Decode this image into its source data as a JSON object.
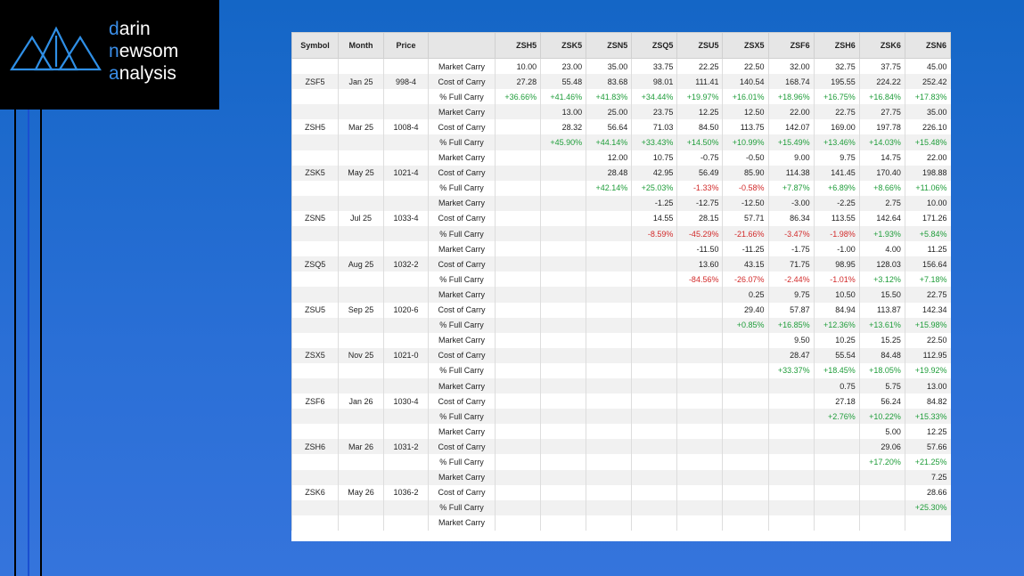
{
  "logo": {
    "lines": [
      "darin",
      "newsom",
      "analysis"
    ]
  },
  "table": {
    "columns": [
      "Symbol",
      "Month",
      "Price"
    ],
    "contracts": [
      "ZSH5",
      "ZSK5",
      "ZSN5",
      "ZSQ5",
      "ZSU5",
      "ZSX5",
      "ZSF6",
      "ZSH6",
      "ZSK6",
      "ZSN6"
    ],
    "groups": [
      {
        "symbol": "ZSF5",
        "month": "Jan 25",
        "price": "998-4",
        "rows": [
          {
            "label": "Market Carry",
            "values": [
              "10.00",
              "23.00",
              "35.00",
              "33.75",
              "22.25",
              "22.50",
              "32.00",
              "32.75",
              "37.75",
              "45.00"
            ]
          },
          {
            "label": "Cost of Carry",
            "values": [
              "27.28",
              "55.48",
              "83.68",
              "98.01",
              "111.41",
              "140.54",
              "168.74",
              "195.55",
              "224.22",
              "252.42"
            ]
          },
          {
            "label": "% Full Carry",
            "values": [
              "+36.66%",
              "+41.46%",
              "+41.83%",
              "+34.44%",
              "+19.97%",
              "+16.01%",
              "+18.96%",
              "+16.75%",
              "+16.84%",
              "+17.83%"
            ]
          }
        ]
      },
      {
        "symbol": "ZSH5",
        "month": "Mar 25",
        "price": "1008-4",
        "rows": [
          {
            "label": "Market Carry",
            "values": [
              null,
              "13.00",
              "25.00",
              "23.75",
              "12.25",
              "12.50",
              "22.00",
              "22.75",
              "27.75",
              "35.00"
            ]
          },
          {
            "label": "Cost of Carry",
            "values": [
              null,
              "28.32",
              "56.64",
              "71.03",
              "84.50",
              "113.75",
              "142.07",
              "169.00",
              "197.78",
              "226.10"
            ]
          },
          {
            "label": "% Full Carry",
            "values": [
              null,
              "+45.90%",
              "+44.14%",
              "+33.43%",
              "+14.50%",
              "+10.99%",
              "+15.49%",
              "+13.46%",
              "+14.03%",
              "+15.48%"
            ]
          }
        ]
      },
      {
        "symbol": "ZSK5",
        "month": "May 25",
        "price": "1021-4",
        "rows": [
          {
            "label": "Market Carry",
            "values": [
              null,
              null,
              "12.00",
              "10.75",
              "-0.75",
              "-0.50",
              "9.00",
              "9.75",
              "14.75",
              "22.00"
            ]
          },
          {
            "label": "Cost of Carry",
            "values": [
              null,
              null,
              "28.48",
              "42.95",
              "56.49",
              "85.90",
              "114.38",
              "141.45",
              "170.40",
              "198.88"
            ]
          },
          {
            "label": "% Full Carry",
            "values": [
              null,
              null,
              "+42.14%",
              "+25.03%",
              "-1.33%",
              "-0.58%",
              "+7.87%",
              "+6.89%",
              "+8.66%",
              "+11.06%"
            ]
          }
        ]
      },
      {
        "symbol": "ZSN5",
        "month": "Jul 25",
        "price": "1033-4",
        "rows": [
          {
            "label": "Market Carry",
            "values": [
              null,
              null,
              null,
              "-1.25",
              "-12.75",
              "-12.50",
              "-3.00",
              "-2.25",
              "2.75",
              "10.00"
            ]
          },
          {
            "label": "Cost of Carry",
            "values": [
              null,
              null,
              null,
              "14.55",
              "28.15",
              "57.71",
              "86.34",
              "113.55",
              "142.64",
              "171.26"
            ]
          },
          {
            "label": "% Full Carry",
            "values": [
              null,
              null,
              null,
              "-8.59%",
              "-45.29%",
              "-21.66%",
              "-3.47%",
              "-1.98%",
              "+1.93%",
              "+5.84%"
            ]
          }
        ]
      },
      {
        "symbol": "ZSQ5",
        "month": "Aug 25",
        "price": "1032-2",
        "rows": [
          {
            "label": "Market Carry",
            "values": [
              null,
              null,
              null,
              null,
              "-11.50",
              "-11.25",
              "-1.75",
              "-1.00",
              "4.00",
              "11.25"
            ]
          },
          {
            "label": "Cost of Carry",
            "values": [
              null,
              null,
              null,
              null,
              "13.60",
              "43.15",
              "71.75",
              "98.95",
              "128.03",
              "156.64"
            ]
          },
          {
            "label": "% Full Carry",
            "values": [
              null,
              null,
              null,
              null,
              "-84.56%",
              "-26.07%",
              "-2.44%",
              "-1.01%",
              "+3.12%",
              "+7.18%"
            ]
          }
        ]
      },
      {
        "symbol": "ZSU5",
        "month": "Sep 25",
        "price": "1020-6",
        "rows": [
          {
            "label": "Market Carry",
            "values": [
              null,
              null,
              null,
              null,
              null,
              "0.25",
              "9.75",
              "10.50",
              "15.50",
              "22.75"
            ]
          },
          {
            "label": "Cost of Carry",
            "values": [
              null,
              null,
              null,
              null,
              null,
              "29.40",
              "57.87",
              "84.94",
              "113.87",
              "142.34"
            ]
          },
          {
            "label": "% Full Carry",
            "values": [
              null,
              null,
              null,
              null,
              null,
              "+0.85%",
              "+16.85%",
              "+12.36%",
              "+13.61%",
              "+15.98%"
            ]
          }
        ]
      },
      {
        "symbol": "ZSX5",
        "month": "Nov 25",
        "price": "1021-0",
        "rows": [
          {
            "label": "Market Carry",
            "values": [
              null,
              null,
              null,
              null,
              null,
              null,
              "9.50",
              "10.25",
              "15.25",
              "22.50"
            ]
          },
          {
            "label": "Cost of Carry",
            "values": [
              null,
              null,
              null,
              null,
              null,
              null,
              "28.47",
              "55.54",
              "84.48",
              "112.95"
            ]
          },
          {
            "label": "% Full Carry",
            "values": [
              null,
              null,
              null,
              null,
              null,
              null,
              "+33.37%",
              "+18.45%",
              "+18.05%",
              "+19.92%"
            ]
          }
        ]
      },
      {
        "symbol": "ZSF6",
        "month": "Jan 26",
        "price": "1030-4",
        "rows": [
          {
            "label": "Market Carry",
            "values": [
              null,
              null,
              null,
              null,
              null,
              null,
              null,
              "0.75",
              "5.75",
              "13.00"
            ]
          },
          {
            "label": "Cost of Carry",
            "values": [
              null,
              null,
              null,
              null,
              null,
              null,
              null,
              "27.18",
              "56.24",
              "84.82"
            ]
          },
          {
            "label": "% Full Carry",
            "values": [
              null,
              null,
              null,
              null,
              null,
              null,
              null,
              "+2.76%",
              "+10.22%",
              "+15.33%"
            ]
          }
        ]
      },
      {
        "symbol": "ZSH6",
        "month": "Mar 26",
        "price": "1031-2",
        "rows": [
          {
            "label": "Market Carry",
            "values": [
              null,
              null,
              null,
              null,
              null,
              null,
              null,
              null,
              "5.00",
              "12.25"
            ]
          },
          {
            "label": "Cost of Carry",
            "values": [
              null,
              null,
              null,
              null,
              null,
              null,
              null,
              null,
              "29.06",
              "57.66"
            ]
          },
          {
            "label": "% Full Carry",
            "values": [
              null,
              null,
              null,
              null,
              null,
              null,
              null,
              null,
              "+17.20%",
              "+21.25%"
            ]
          }
        ]
      },
      {
        "symbol": "ZSK6",
        "month": "May 26",
        "price": "1036-2",
        "rows": [
          {
            "label": "Market Carry",
            "values": [
              null,
              null,
              null,
              null,
              null,
              null,
              null,
              null,
              null,
              "7.25"
            ]
          },
          {
            "label": "Cost of Carry",
            "values": [
              null,
              null,
              null,
              null,
              null,
              null,
              null,
              null,
              null,
              "28.66"
            ]
          },
          {
            "label": "% Full Carry",
            "values": [
              null,
              null,
              null,
              null,
              null,
              null,
              null,
              null,
              null,
              "+25.30%"
            ]
          }
        ]
      }
    ],
    "partial_row": "Market Carry"
  }
}
